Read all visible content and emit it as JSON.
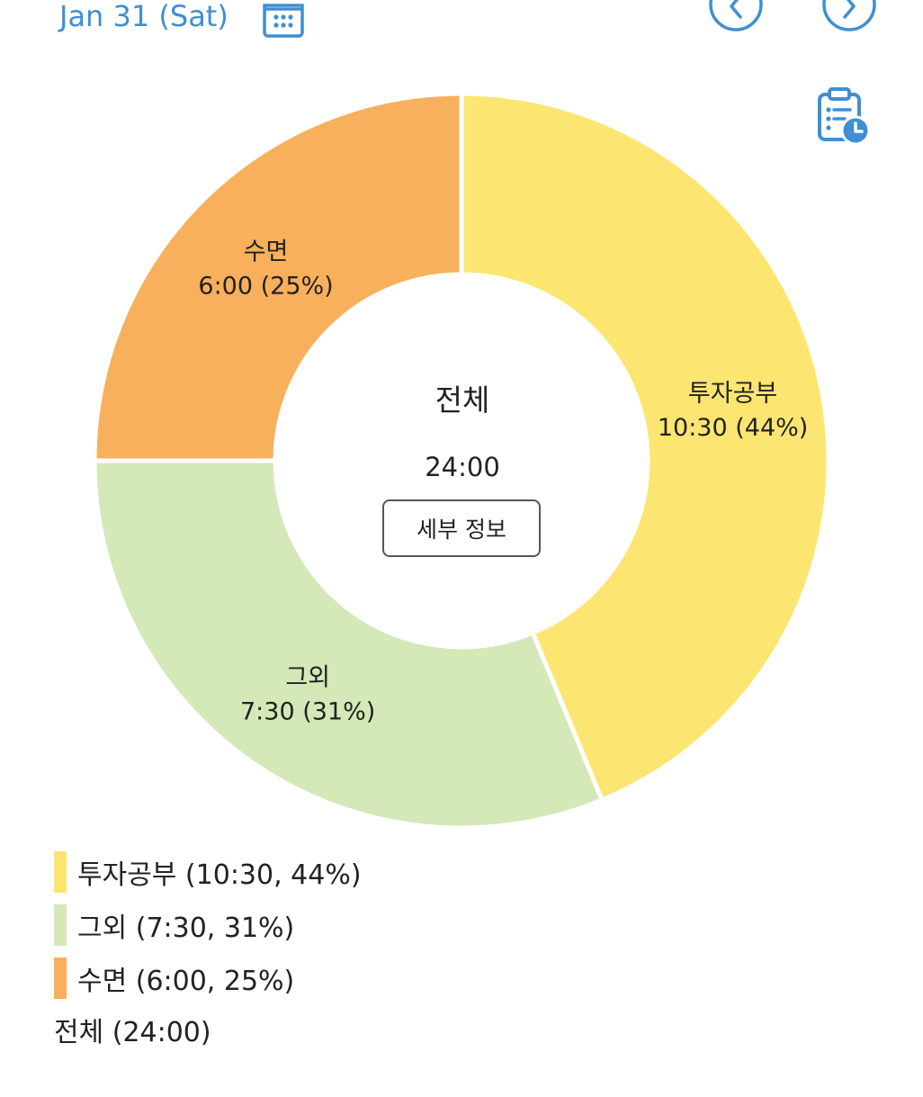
{
  "header": {
    "date_label": "Jan 31 (Sat)"
  },
  "icons": {
    "calendar": "calendar-icon",
    "prev": "chevron-left-circle-icon",
    "next": "chevron-right-circle-icon",
    "log": "clipboard-clock-icon"
  },
  "colors": {
    "accent": "#3f8fd2",
    "series": [
      "#fce571",
      "#d4e8b8",
      "#f8b05c"
    ]
  },
  "chart_data": {
    "type": "pie",
    "donut": true,
    "slices": [
      {
        "label": "투자공부",
        "value": 10.5,
        "time": "10:30",
        "percent": 44,
        "slice_label_line2": "10:30 (44%)",
        "legend_text": "투자공부 (10:30, 44%)"
      },
      {
        "label": "그외",
        "value": 7.5,
        "time": "7:30",
        "percent": 31,
        "slice_label_line2": "7:30 (31%)",
        "legend_text": "그외 (7:30, 31%)"
      },
      {
        "label": "수면",
        "value": 6,
        "time": "6:00",
        "percent": 25,
        "slice_label_line2": "6:00 (25%)",
        "legend_text": "수면 (6:00, 25%)"
      }
    ],
    "center_title": "전체",
    "center_total": "24:00",
    "legend_total": "전체 (24:00)"
  },
  "buttons": {
    "detail_label": "세부 정보"
  }
}
